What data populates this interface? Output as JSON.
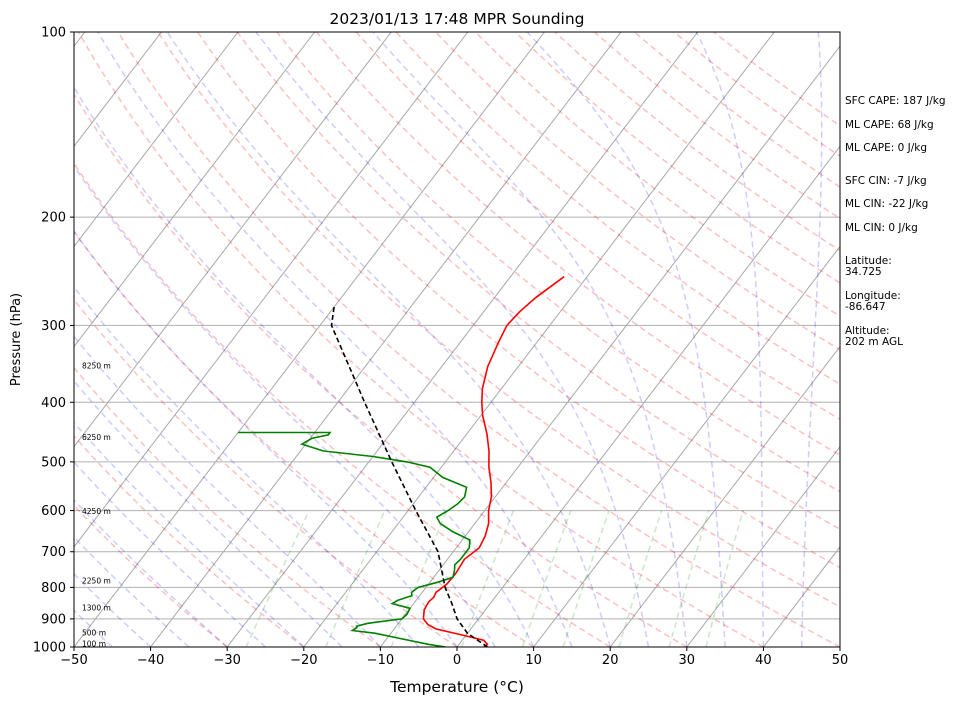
{
  "chart_data": {
    "type": "line",
    "title": "2023/01/13 17:48 MPR Sounding",
    "xlabel": "Temperature (°C)",
    "ylabel": "Pressure (hPa)",
    "xlim": [
      -50,
      50
    ],
    "ylim": [
      1000,
      100
    ],
    "yscale": "log",
    "grid": true,
    "x_ticks": [
      -50,
      -40,
      -30,
      -20,
      -10,
      0,
      10,
      20,
      30,
      40,
      50
    ],
    "y_ticks": [
      100,
      200,
      300,
      400,
      500,
      600,
      700,
      800,
      900,
      1000
    ],
    "height_labels": [
      {
        "text": "8250 m",
        "p": 350
      },
      {
        "text": "6250 m",
        "p": 457
      },
      {
        "text": "4250 m",
        "p": 603
      },
      {
        "text": "2250 m",
        "p": 782
      },
      {
        "text": "1300 m",
        "p": 866
      },
      {
        "text": "500 m",
        "p": 950
      },
      {
        "text": "100 m",
        "p": 990
      }
    ],
    "series": [
      {
        "color": "#ff0000",
        "points": [
          [
            1000,
            3.5
          ],
          [
            990,
            3.7
          ],
          [
            975,
            2.8
          ],
          [
            960,
            0.2
          ],
          [
            935,
            -4.5
          ],
          [
            920,
            -6.0
          ],
          [
            900,
            -7.2
          ],
          [
            870,
            -8.0
          ],
          [
            845,
            -8.2
          ],
          [
            830,
            -8.0
          ],
          [
            815,
            -8.2
          ],
          [
            790,
            -7.6
          ],
          [
            760,
            -7.5
          ],
          [
            720,
            -7.8
          ],
          [
            690,
            -7.0
          ],
          [
            660,
            -7.4
          ],
          [
            630,
            -8.2
          ],
          [
            600,
            -9.5
          ],
          [
            570,
            -10.5
          ],
          [
            540,
            -12.0
          ],
          [
            510,
            -13.8
          ],
          [
            480,
            -15.4
          ],
          [
            450,
            -17.4
          ],
          [
            420,
            -19.8
          ],
          [
            400,
            -21.2
          ],
          [
            380,
            -22.5
          ],
          [
            350,
            -24.0
          ],
          [
            320,
            -25.0
          ],
          [
            300,
            -25.6
          ],
          [
            285,
            -25.3
          ],
          [
            270,
            -24.6
          ],
          [
            250,
            -23.0
          ]
        ]
      },
      {
        "color": "#008000",
        "points": [
          [
            1000,
            -1.5
          ],
          [
            990,
            -4.0
          ],
          [
            970,
            -8.0
          ],
          [
            950,
            -12.0
          ],
          [
            940,
            -15.3
          ],
          [
            930,
            -15.0
          ],
          [
            925,
            -15.2
          ],
          [
            915,
            -14.0
          ],
          [
            900,
            -10.0
          ],
          [
            885,
            -9.8
          ],
          [
            865,
            -10.0
          ],
          [
            850,
            -12.8
          ],
          [
            840,
            -12.4
          ],
          [
            825,
            -11.0
          ],
          [
            815,
            -11.4
          ],
          [
            800,
            -11.0
          ],
          [
            785,
            -9.0
          ],
          [
            770,
            -7.5
          ],
          [
            750,
            -8.0
          ],
          [
            735,
            -8.5
          ],
          [
            720,
            -8.3
          ],
          [
            690,
            -8.3
          ],
          [
            670,
            -9.0
          ],
          [
            650,
            -12.0
          ],
          [
            630,
            -14.5
          ],
          [
            615,
            -15.6
          ],
          [
            600,
            -14.8
          ],
          [
            585,
            -14.2
          ],
          [
            570,
            -14.0
          ],
          [
            550,
            -14.7
          ],
          [
            530,
            -18.8
          ],
          [
            510,
            -21.5
          ],
          [
            500,
            -25.0
          ],
          [
            490,
            -30.0
          ],
          [
            480,
            -37.0
          ],
          [
            468,
            -40.5
          ],
          [
            458,
            -39.8
          ],
          [
            452,
            -38.0
          ],
          [
            448,
            -38.0
          ],
          [
            448,
            -50.0
          ]
        ]
      },
      {
        "color": "#000000",
        "dashed": true,
        "points": [
          [
            1000,
            4.0
          ],
          [
            950,
            0.0
          ],
          [
            900,
            -2.8
          ],
          [
            850,
            -5.0
          ],
          [
            800,
            -7.5
          ],
          [
            700,
            -12.0
          ],
          [
            600,
            -19.0
          ],
          [
            500,
            -27.0
          ],
          [
            400,
            -36.5
          ],
          [
            300,
            -48.5
          ],
          [
            280,
            -50.0
          ]
        ]
      }
    ]
  },
  "info_panel": {
    "sfc_cape": "SFC CAPE: 187 J/kg",
    "ml_cape": "ML CAPE: 68 J/kg",
    "ml_cape2": "ML CAPE: 0 J/kg",
    "sfc_cin": "SFC CIN: -7 J/kg",
    "ml_cin": "ML CIN: -22 J/kg",
    "ml_cin2": "ML CIN: 0 J/kg",
    "latitude_label": "Latitude:",
    "latitude_value": "34.725",
    "longitude_label": "Longitude:",
    "longitude_value": "-86.647",
    "altitude_label": "Altitude:",
    "altitude_value": "202 m AGL"
  }
}
